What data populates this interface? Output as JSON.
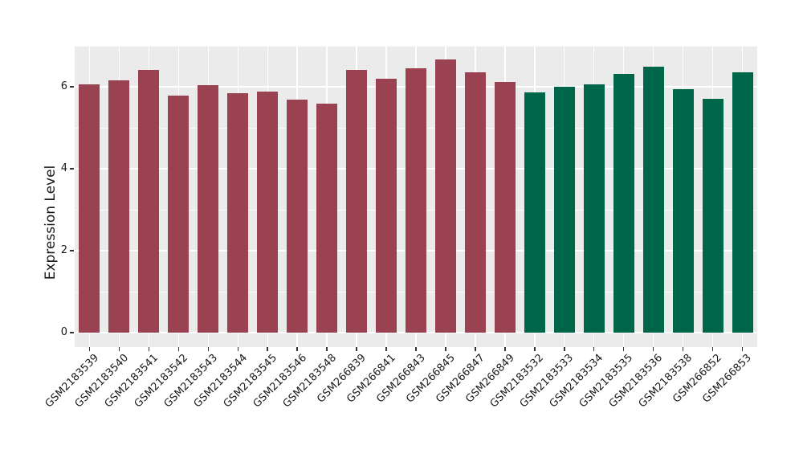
{
  "figure": {
    "background": "#FFFFFF",
    "panel_background": "#EBEBEB",
    "grid_color": "#FFFFFF",
    "tick_color": "#333333",
    "text_color": "#1A1A1A"
  },
  "chart_data": {
    "type": "bar",
    "title": "",
    "xlabel": "",
    "ylabel": "Expression Level",
    "ylim": [
      0,
      7
    ],
    "yticks": [
      0,
      2,
      4,
      6
    ],
    "yticks_minor": [
      1,
      3,
      5,
      7
    ],
    "grid": "on",
    "legend": "none",
    "x_tick_rotation_deg": 45,
    "categories": [
      "GSM2183539",
      "GSM2183540",
      "GSM2183541",
      "GSM2183542",
      "GSM2183543",
      "GSM2183544",
      "GSM2183545",
      "GSM2183546",
      "GSM2183548",
      "GSM266839",
      "GSM266841",
      "GSM266843",
      "GSM266845",
      "GSM266847",
      "GSM266849",
      "GSM2183532",
      "GSM2183533",
      "GSM2183534",
      "GSM2183535",
      "GSM2183536",
      "GSM2183538",
      "GSM266852",
      "GSM266853"
    ],
    "values": [
      6.05,
      6.16,
      6.42,
      5.78,
      6.04,
      5.85,
      5.88,
      5.68,
      5.58,
      6.42,
      6.2,
      6.45,
      6.67,
      6.36,
      6.12,
      5.86,
      6.0,
      6.05,
      6.31,
      6.5,
      5.95,
      5.7,
      6.36
    ],
    "bar_colors": [
      "#9A4252",
      "#9A4252",
      "#9A4252",
      "#9A4252",
      "#9A4252",
      "#9A4252",
      "#9A4252",
      "#9A4252",
      "#9A4252",
      "#9A4252",
      "#9A4252",
      "#9A4252",
      "#9A4252",
      "#9A4252",
      "#9A4252",
      "#00664A",
      "#00664A",
      "#00664A",
      "#00664A",
      "#00664A",
      "#00664A",
      "#00664A",
      "#00664A"
    ]
  }
}
